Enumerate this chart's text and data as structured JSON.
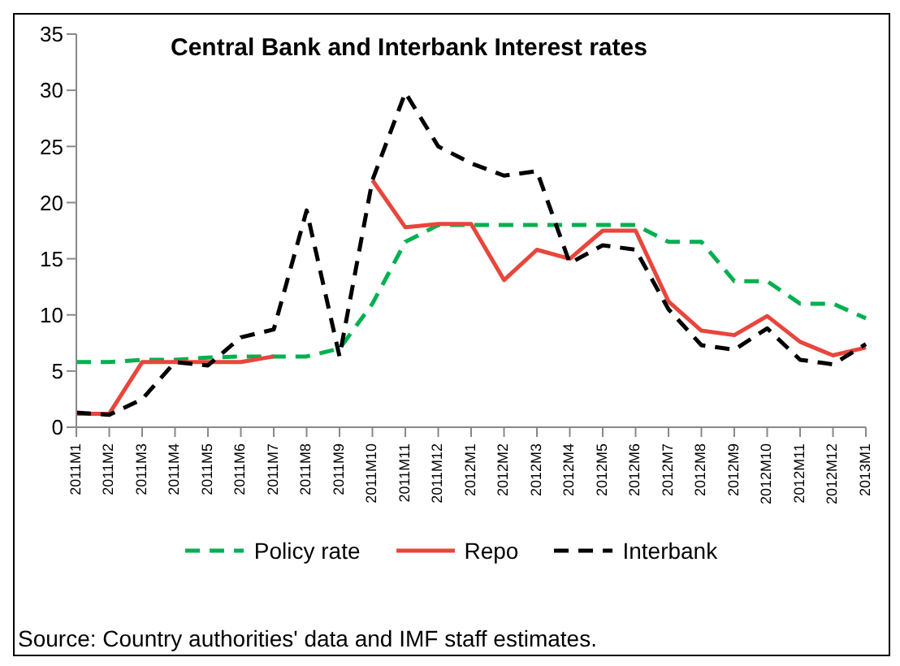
{
  "chart_data": {
    "type": "line",
    "title": "Central Bank and Interbank Interest rates",
    "categories": [
      "2011M1",
      "2011M2",
      "2011M3",
      "2011M4",
      "2011M5",
      "2011M6",
      "2011M7",
      "2011M8",
      "2011M9",
      "2011M10",
      "2011M11",
      "2011M12",
      "2012M1",
      "2012M2",
      "2012M3",
      "2012M4",
      "2012M5",
      "2012M6",
      "2012M7",
      "2012M8",
      "2012M9",
      "2012M10",
      "2012M11",
      "2012M12",
      "2013M1"
    ],
    "series": [
      {
        "name": "Policy rate",
        "color": "#00b050",
        "line_style": "dashed",
        "values": [
          5.8,
          5.8,
          6.0,
          6.0,
          6.2,
          6.3,
          6.3,
          6.3,
          7.0,
          11,
          16.5,
          18,
          18,
          18,
          18,
          18,
          18,
          18,
          16.5,
          16.5,
          13,
          13,
          11,
          11,
          9.7
        ]
      },
      {
        "name": "Repo",
        "color": "#e8463c",
        "line_style": "solid",
        "values": [
          1.2,
          1.2,
          5.8,
          5.8,
          5.8,
          5.8,
          6.3,
          null,
          null,
          22,
          17.8,
          18.1,
          18.1,
          13.1,
          15.8,
          15.0,
          17.5,
          17.5,
          11.2,
          8.6,
          8.2,
          9.9,
          7.6,
          6.4,
          7.1
        ]
      },
      {
        "name": "Interbank",
        "color": "#000000",
        "line_style": "dashed",
        "values": [
          1.3,
          1.1,
          2.5,
          5.8,
          5.5,
          8.0,
          8.7,
          19.3,
          6.3,
          22,
          29.8,
          25,
          23.5,
          22.4,
          22.8,
          14.6,
          16.2,
          15.8,
          10.5,
          7.3,
          6.9,
          8.8,
          6.0,
          5.6,
          7.4
        ]
      }
    ],
    "ylim": [
      0,
      35
    ],
    "yticks": [
      0,
      5,
      10,
      15,
      20,
      25,
      30,
      35
    ],
    "legend": "bottom",
    "marker": "none",
    "annotations": [
      "Source:  Country authorities' data and IMF staff estimates."
    ]
  }
}
